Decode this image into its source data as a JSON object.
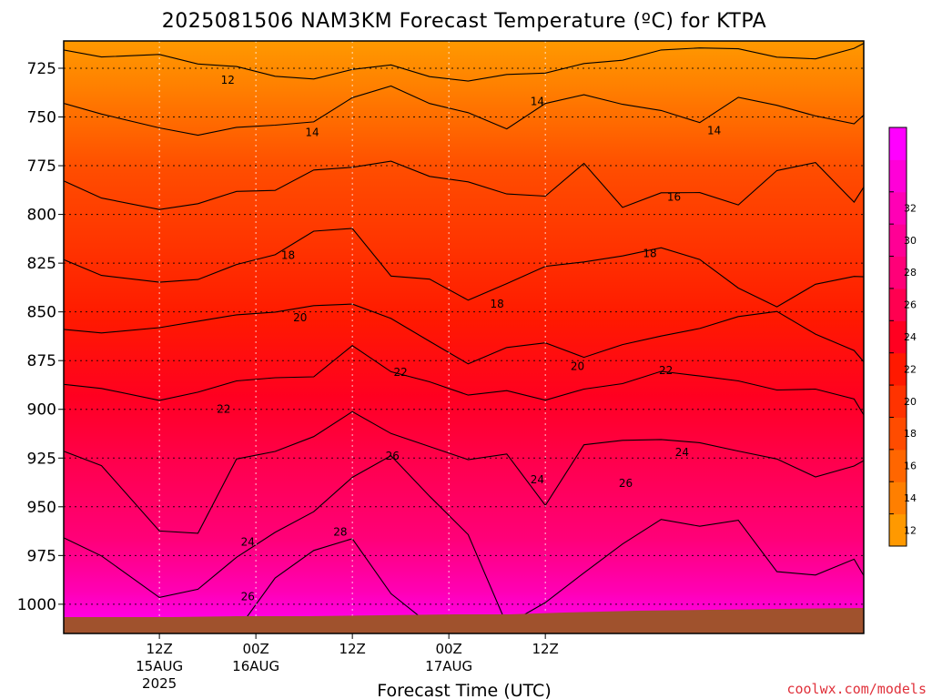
{
  "chart_data": {
    "type": "heatmap",
    "title": "2025081506 NAM3KM Forecast Temperature (ºC) for KTPA",
    "xlabel": "Forecast Time (UTC)",
    "ylabel": "",
    "y_axis": {
      "unit": "hPa",
      "inverted": true,
      "ylim": [
        1015,
        711
      ],
      "ticks": [
        725,
        750,
        775,
        800,
        825,
        850,
        875,
        900,
        925,
        950,
        975,
        1000
      ]
    },
    "x_ticks": [
      {
        "line1": "12Z",
        "line2": "15AUG",
        "line3": "2025"
      },
      {
        "line1": "00Z",
        "line2": "16AUG",
        "line3": ""
      },
      {
        "line1": "12Z",
        "line2": "",
        "line3": ""
      },
      {
        "line1": "00Z",
        "line2": "17AUG",
        "line3": ""
      },
      {
        "line1": "12Z",
        "line2": "",
        "line3": ""
      }
    ],
    "grid": true,
    "colorbar": {
      "placement": "right",
      "colors": [
        "#ff9900",
        "#ff7f00",
        "#ff6600",
        "#ff4c00",
        "#ff3300",
        "#ff1900",
        "#ff0020",
        "#ff0050",
        "#ff0078",
        "#ff0095",
        "#ff00b5",
        "#ff00d8",
        "#ff00ff"
      ],
      "tick_labels": [
        "12",
        "14",
        "16",
        "18",
        "20",
        "22",
        "24",
        "26",
        "28",
        "30",
        "32"
      ]
    },
    "surface_color": "#a0522d",
    "isotherms_c": [
      12,
      14,
      16,
      18,
      20,
      22,
      24,
      26,
      28
    ],
    "isotherm_labels": [
      {
        "text": "12",
        "x_h": 8.5,
        "p": 731
      },
      {
        "text": "14",
        "x_h": 19,
        "p": 758
      },
      {
        "text": "14",
        "x_h": 47,
        "p": 742
      },
      {
        "text": "14",
        "x_h": 69,
        "p": 757
      },
      {
        "text": "16",
        "x_h": 64,
        "p": 791
      },
      {
        "text": "18",
        "x_h": 16,
        "p": 821
      },
      {
        "text": "18",
        "x_h": 42,
        "p": 846
      },
      {
        "text": "18",
        "x_h": 61,
        "p": 820
      },
      {
        "text": "20",
        "x_h": 17.5,
        "p": 853
      },
      {
        "text": "20",
        "x_h": 52,
        "p": 878
      },
      {
        "text": "22",
        "x_h": 8,
        "p": 900
      },
      {
        "text": "22",
        "x_h": 30,
        "p": 881
      },
      {
        "text": "22",
        "x_h": 63,
        "p": 880
      },
      {
        "text": "24",
        "x_h": 11,
        "p": 968
      },
      {
        "text": "24",
        "x_h": 47,
        "p": 936
      },
      {
        "text": "24",
        "x_h": 65,
        "p": 922
      },
      {
        "text": "26",
        "x_h": 29,
        "p": 924
      },
      {
        "text": "26",
        "x_h": 58,
        "p": 938
      },
      {
        "text": "26",
        "x_h": 11,
        "p": 996
      },
      {
        "text": "28",
        "x_h": 22.5,
        "p": 963
      }
    ],
    "isotherm_paths": [
      {
        "value": 12,
        "points": [
          [
            -11.9,
            715.6
          ],
          [
            -7.2,
            719.2
          ],
          [
            0,
            717.9
          ],
          [
            4.8,
            722.8
          ],
          [
            9.6,
            724.1
          ],
          [
            14.4,
            729.1
          ],
          [
            19.2,
            730.5
          ],
          [
            24,
            725.6
          ],
          [
            28.8,
            723.3
          ],
          [
            33.6,
            729.3
          ],
          [
            38.4,
            731.6
          ],
          [
            43.2,
            728.2
          ],
          [
            48,
            727.5
          ],
          [
            52.8,
            722.6
          ],
          [
            57.6,
            720.9
          ],
          [
            62.4,
            715.6
          ],
          [
            67.2,
            714.6
          ],
          [
            72,
            715
          ],
          [
            76.8,
            719.3
          ],
          [
            81.6,
            720.2
          ],
          [
            86.4,
            714.8
          ],
          [
            87.6,
            712.2
          ]
        ]
      },
      {
        "value": 14,
        "points": [
          [
            -11.9,
            743
          ],
          [
            -7.2,
            748.5
          ],
          [
            0,
            755.6
          ],
          [
            4.8,
            759.4
          ],
          [
            9.6,
            755.3
          ],
          [
            14.4,
            754.2
          ],
          [
            19.2,
            752.5
          ],
          [
            24,
            740.1
          ],
          [
            28.8,
            734.1
          ],
          [
            33.6,
            743.1
          ],
          [
            38.4,
            747.8
          ],
          [
            43.2,
            756.1
          ],
          [
            48,
            743.1
          ],
          [
            52.8,
            738.6
          ],
          [
            57.6,
            743.5
          ],
          [
            62.4,
            746.7
          ],
          [
            67.2,
            752.9
          ],
          [
            72,
            739.9
          ],
          [
            76.8,
            744
          ],
          [
            81.6,
            749.5
          ],
          [
            86.4,
            753.5
          ],
          [
            87.6,
            749
          ]
        ]
      },
      {
        "value": 16,
        "points": [
          [
            -11.9,
            782.8
          ],
          [
            -7.2,
            791.6
          ],
          [
            0,
            797.5
          ],
          [
            4.8,
            794.5
          ],
          [
            9.6,
            788.2
          ],
          [
            14.4,
            787.7
          ],
          [
            19.2,
            777.2
          ],
          [
            24,
            775.8
          ],
          [
            28.8,
            772.7
          ],
          [
            33.6,
            780.5
          ],
          [
            38.4,
            783.3
          ],
          [
            43.2,
            789.5
          ],
          [
            48,
            790.6
          ],
          [
            52.8,
            773.8
          ],
          [
            57.6,
            796.4
          ],
          [
            62.4,
            788.9
          ],
          [
            67.2,
            788.8
          ],
          [
            72,
            795.1
          ],
          [
            76.8,
            777.5
          ],
          [
            81.6,
            773.4
          ],
          [
            86.4,
            793.7
          ],
          [
            87.6,
            786
          ]
        ]
      },
      {
        "value": 18,
        "points": [
          [
            -11.9,
            823.2
          ],
          [
            -7.2,
            831.3
          ],
          [
            0,
            834.8
          ],
          [
            4.8,
            833.4
          ],
          [
            9.6,
            825.7
          ],
          [
            14.4,
            820.7
          ],
          [
            19.2,
            808.6
          ],
          [
            24,
            807.2
          ],
          [
            28.8,
            831.6
          ],
          [
            33.6,
            833.2
          ],
          [
            38.4,
            844
          ],
          [
            43.2,
            835.5
          ],
          [
            48,
            826.6
          ],
          [
            52.8,
            824.4
          ],
          [
            57.6,
            821.3
          ],
          [
            62.4,
            817.1
          ],
          [
            67.2,
            823.1
          ],
          [
            72,
            837.8
          ],
          [
            76.8,
            847.4
          ],
          [
            81.6,
            835.8
          ],
          [
            86.4,
            831.8
          ],
          [
            87.6,
            832
          ]
        ]
      },
      {
        "value": 20,
        "points": [
          [
            -11.9,
            859
          ],
          [
            -7.2,
            860.8
          ],
          [
            0,
            858.1
          ],
          [
            4.8,
            854.8
          ],
          [
            9.6,
            851.5
          ],
          [
            14.4,
            850.1
          ],
          [
            19.2,
            846.8
          ],
          [
            24,
            846
          ],
          [
            28.8,
            853.4
          ],
          [
            33.6,
            865.1
          ],
          [
            38.4,
            876.7
          ],
          [
            43.2,
            868.3
          ],
          [
            48,
            865.9
          ],
          [
            52.8,
            873.3
          ],
          [
            57.6,
            866.8
          ],
          [
            62.4,
            862.4
          ],
          [
            67.2,
            858.5
          ],
          [
            72,
            852.4
          ],
          [
            76.8,
            849.8
          ],
          [
            81.6,
            861.4
          ],
          [
            86.4,
            869.8
          ],
          [
            87.6,
            875.6
          ]
        ]
      },
      {
        "value": 22,
        "points": [
          [
            -11.9,
            887.2
          ],
          [
            -7.2,
            889.3
          ],
          [
            0,
            895.4
          ],
          [
            4.8,
            891.2
          ],
          [
            9.6,
            885.4
          ],
          [
            14.4,
            883.8
          ],
          [
            19.2,
            883.3
          ],
          [
            24,
            867.3
          ],
          [
            28.8,
            880.7
          ],
          [
            33.6,
            885.9
          ],
          [
            38.4,
            892.7
          ],
          [
            43.2,
            890.4
          ],
          [
            48,
            895.3
          ],
          [
            52.8,
            889.6
          ],
          [
            57.6,
            886.8
          ],
          [
            62.4,
            880.5
          ],
          [
            67.2,
            882.9
          ],
          [
            72,
            885.4
          ],
          [
            76.8,
            890.1
          ],
          [
            81.6,
            889.6
          ],
          [
            86.4,
            894.7
          ],
          [
            87.6,
            902.9
          ]
        ]
      },
      {
        "value": 24,
        "points": [
          [
            -11.9,
            921.5
          ],
          [
            -7.2,
            928.9
          ],
          [
            0,
            962.4
          ],
          [
            4.8,
            963.6
          ],
          [
            9.6,
            925.5
          ],
          [
            14.4,
            921.6
          ],
          [
            19.2,
            914
          ],
          [
            24,
            901.2
          ],
          [
            28.8,
            912.4
          ],
          [
            33.6,
            919.1
          ],
          [
            38.4,
            925.8
          ],
          [
            43.2,
            922.9
          ],
          [
            48,
            949.3
          ],
          [
            52.8,
            918.2
          ],
          [
            57.6,
            915.9
          ],
          [
            62.4,
            915.5
          ],
          [
            67.2,
            917.1
          ],
          [
            72,
            921.4
          ],
          [
            76.8,
            925.5
          ],
          [
            81.6,
            934.7
          ],
          [
            86.4,
            929.1
          ],
          [
            87.6,
            926.3
          ]
        ]
      },
      {
        "value": 26,
        "points": [
          [
            -11.9,
            965.9
          ],
          [
            -7.2,
            975.2
          ],
          [
            0,
            996.5
          ],
          [
            4.8,
            992.3
          ],
          [
            9.6,
            975.9
          ],
          [
            14.4,
            963.1
          ],
          [
            19.2,
            952.5
          ],
          [
            24,
            934.9
          ],
          [
            28.8,
            923.8
          ],
          [
            33.6,
            944.6
          ],
          [
            38.4,
            964.3
          ],
          [
            43.2,
            1010.5
          ],
          [
            48,
            999.1
          ],
          [
            52.8,
            983.9
          ],
          [
            57.6,
            969.1
          ],
          [
            62.4,
            956.5
          ],
          [
            67.2,
            960
          ],
          [
            72,
            956.9
          ],
          [
            76.8,
            983.3
          ],
          [
            81.6,
            985
          ],
          [
            86.4,
            976.9
          ],
          [
            87.6,
            985.3
          ]
        ]
      },
      {
        "value": 28,
        "points": [
          [
            9.6,
            1013.9
          ],
          [
            14.4,
            986.5
          ],
          [
            19.2,
            972.4
          ],
          [
            24,
            966.4
          ],
          [
            28.8,
            994.6
          ],
          [
            33.6,
            1010.4
          ]
        ]
      }
    ]
  },
  "credit": "coolwx.com/models"
}
